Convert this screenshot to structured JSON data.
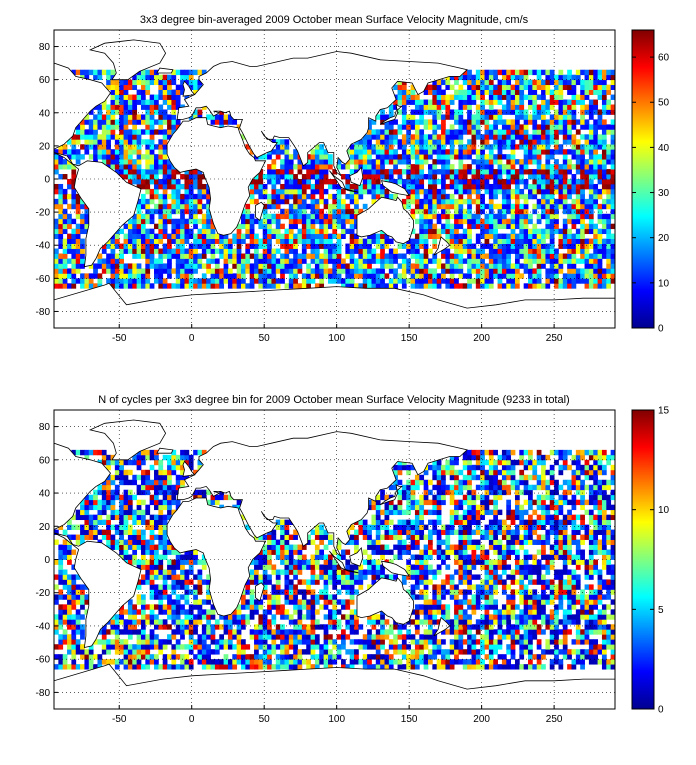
{
  "panels": [
    {
      "title": "3x3 degree bin-averaged 2009 October mean Surface Velocity Magnitude, cm/s",
      "colorbar_ticks": [
        "0",
        "10",
        "20",
        "30",
        "40",
        "50",
        "60"
      ],
      "colorbar_range": [
        0,
        66
      ],
      "colormap": "jet",
      "seed": 7,
      "density": 0.84
    },
    {
      "title": "N of cycles per 3x3 degree bin for 2009 October mean Surface Velocity Magnitude (9233 in total)",
      "colorbar_ticks": [
        "0",
        "5",
        "10",
        "15"
      ],
      "colorbar_range": [
        0,
        15
      ],
      "colormap": "jet",
      "seed": 23,
      "density": 0.74
    }
  ],
  "x_ticks": [
    "-50",
    "0",
    "50",
    "100",
    "150",
    "200",
    "250"
  ],
  "x_tick_values": [
    -50,
    0,
    50,
    100,
    150,
    200,
    250
  ],
  "x_range": [
    -95,
    292
  ],
  "y_ticks": [
    "80",
    "60",
    "40",
    "20",
    "0",
    "-20",
    "-40",
    "-60",
    "-80"
  ],
  "y_tick_values": [
    80,
    60,
    40,
    20,
    0,
    -20,
    -40,
    -60,
    -80
  ],
  "y_range": [
    -90,
    90
  ],
  "chart_data": [
    {
      "type": "heatmap",
      "title": "3x3 degree bin-averaged 2009 October mean Surface Velocity Magnitude, cm/s",
      "xlabel": "",
      "ylabel": "",
      "xlim": [
        -95,
        292
      ],
      "ylim": [
        -90,
        90
      ],
      "bin_size_deg": 3,
      "colorbar_range": [
        0,
        66
      ],
      "grid": true
    },
    {
      "type": "heatmap",
      "title": "N of cycles per 3x3 degree bin for 2009 October mean Surface Velocity Magnitude (9233 in total)",
      "xlabel": "",
      "ylabel": "",
      "xlim": [
        -95,
        292
      ],
      "ylim": [
        -90,
        90
      ],
      "bin_size_deg": 3,
      "colorbar_range": [
        0,
        15
      ],
      "grid": true
    }
  ]
}
